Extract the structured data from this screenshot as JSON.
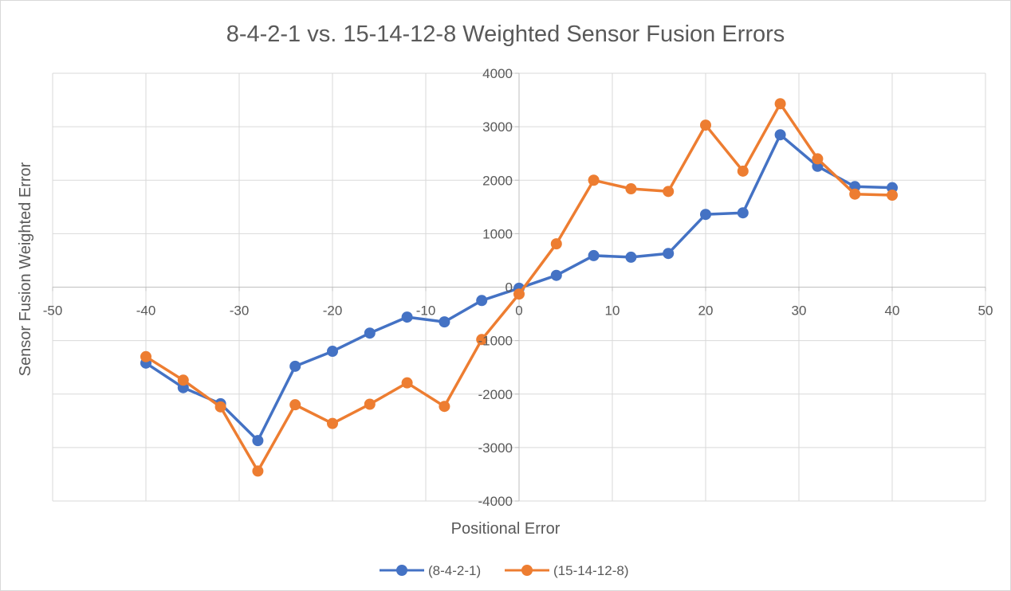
{
  "chart_data": {
    "type": "line",
    "title": "8-4-2-1 vs. 15-14-12-8 Weighted Sensor Fusion Errors",
    "xlabel": "Positional Error",
    "ylabel": "Sensor Fusion Weighted Error",
    "xlim": [
      -50,
      50
    ],
    "ylim": [
      -4000,
      4000
    ],
    "x_ticks": [
      -50,
      -40,
      -30,
      -20,
      -10,
      0,
      10,
      20,
      30,
      40,
      50
    ],
    "y_ticks": [
      -4000,
      -3000,
      -2000,
      -1000,
      0,
      1000,
      2000,
      3000,
      4000
    ],
    "grid": true,
    "legend_position": "bottom",
    "x": [
      -40,
      -36,
      -32,
      -28,
      -24,
      -20,
      -16,
      -12,
      -8,
      -4,
      0,
      4,
      8,
      12,
      16,
      20,
      24,
      28,
      32,
      36,
      40
    ],
    "series": [
      {
        "name": "(8-4-2-1)",
        "color": "#4472c4",
        "values": [
          -1420,
          -1880,
          -2180,
          -2870,
          -1480,
          -1200,
          -860,
          -560,
          -650,
          -250,
          -20,
          220,
          590,
          560,
          630,
          1360,
          1390,
          2850,
          2260,
          1880,
          1860
        ]
      },
      {
        "name": "(15-14-12-8)",
        "color": "#ed7d31",
        "values": [
          -1300,
          -1740,
          -2240,
          -3440,
          -2200,
          -2550,
          -2190,
          -1790,
          -2230,
          -980,
          -130,
          810,
          2000,
          1840,
          1790,
          3030,
          2170,
          3430,
          2400,
          1740,
          1720
        ]
      }
    ]
  }
}
